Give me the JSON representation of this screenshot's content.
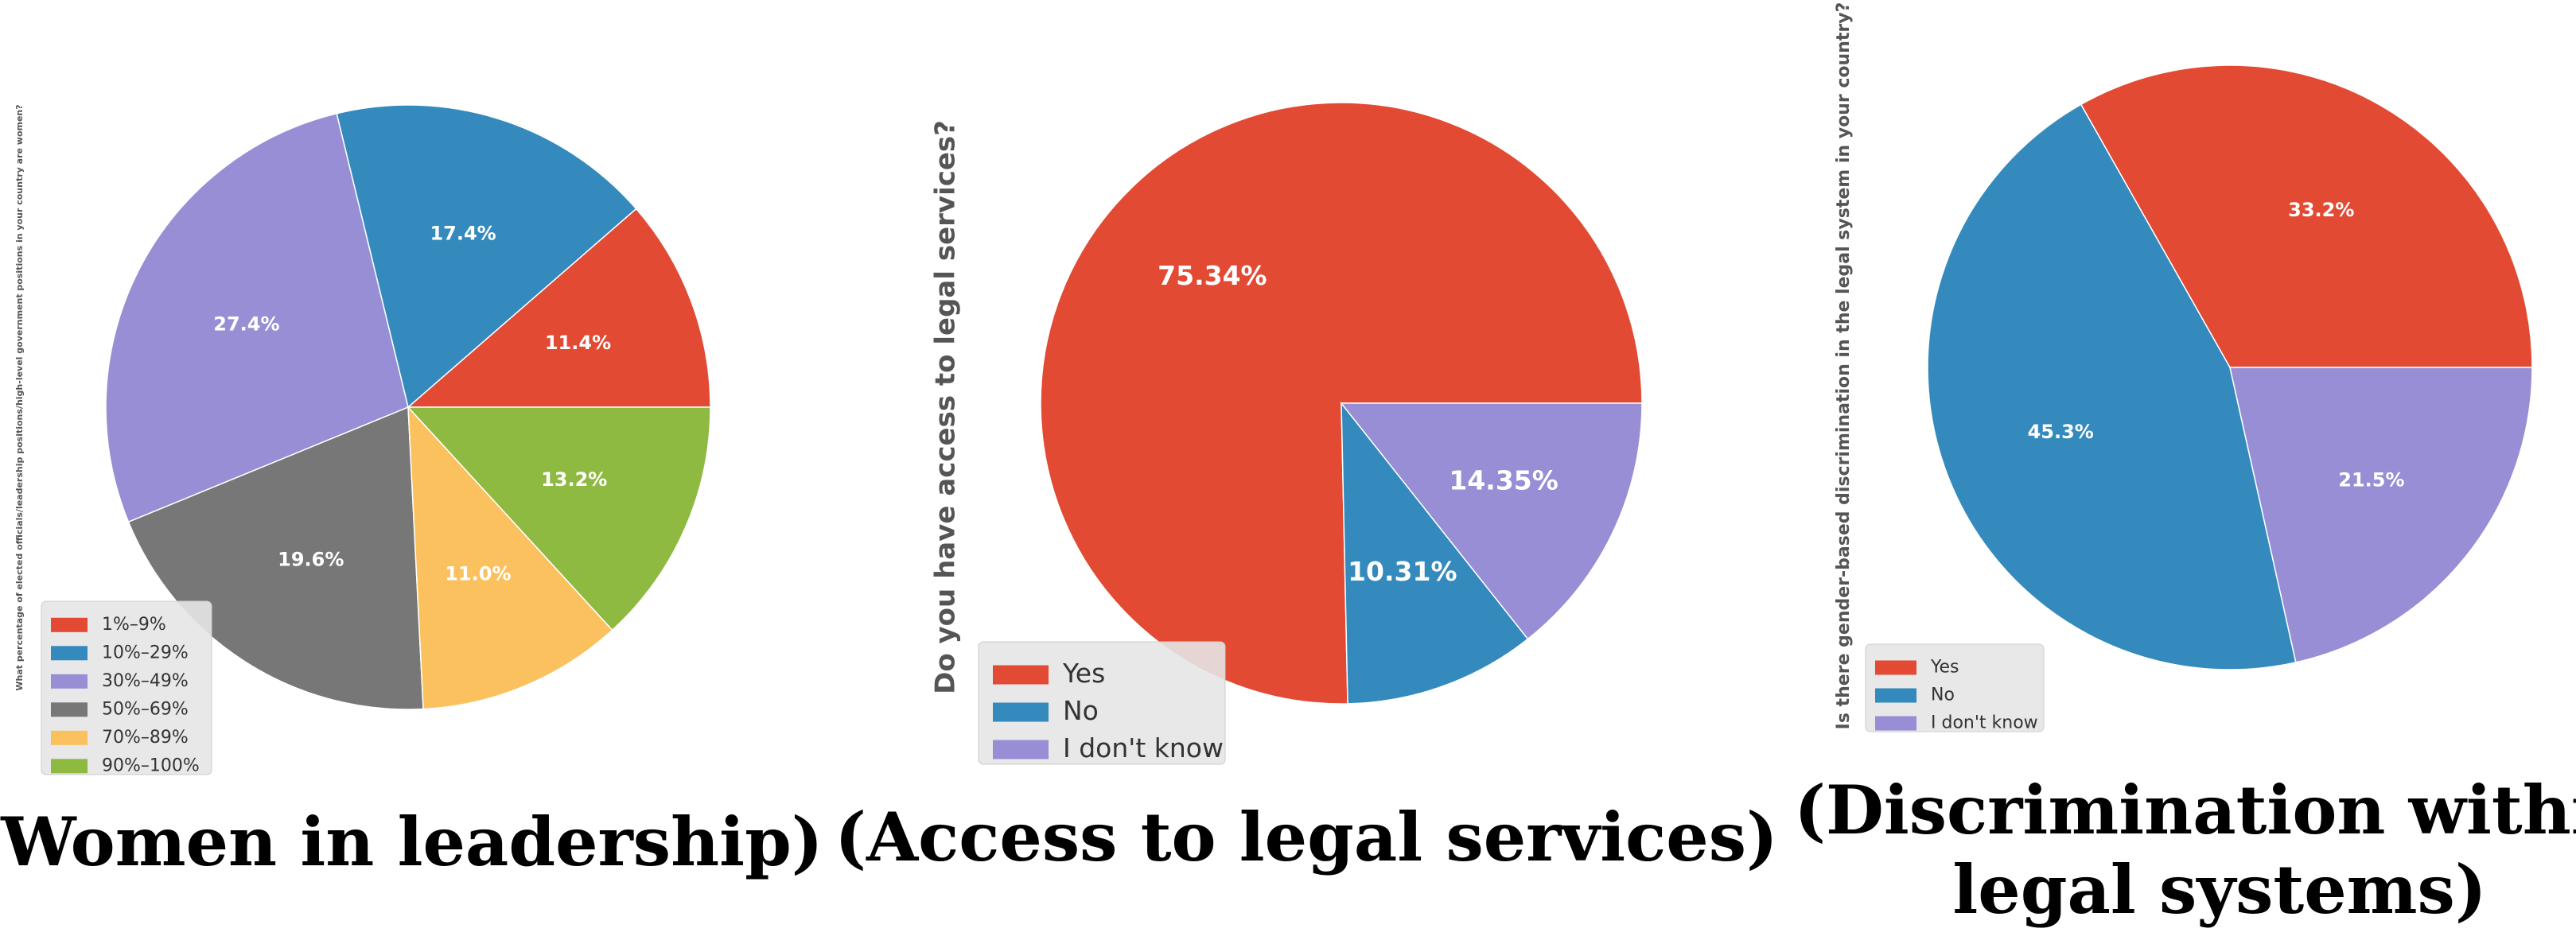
{
  "chart_data": [
    {
      "type": "pie",
      "title": "(Women in leadership)",
      "ylabel": "What percentage of elected officials/leadership positions/high-level government positions in your country are women?",
      "legend_position": "bottom-left",
      "categories": [
        "1%–9%",
        "10%–29%",
        "30%–49%",
        "50%–69%",
        "70%–89%",
        "90%–100%"
      ],
      "values": [
        11.4,
        17.4,
        27.4,
        19.6,
        11.0,
        13.2
      ],
      "labels": [
        "11.4%",
        "17.4%",
        "27.4%",
        "19.6%",
        "11.0%",
        "13.2%"
      ],
      "colors": [
        "#E24A33",
        "#348ABD",
        "#988ED5",
        "#777777",
        "#FBC15E",
        "#8EBA42"
      ]
    },
    {
      "type": "pie",
      "title": "(Access to legal services)",
      "ylabel": "Do you have access to legal services?",
      "legend_position": "bottom-left",
      "categories": [
        "Yes",
        "No",
        "I don't know"
      ],
      "values": [
        75.34,
        10.31,
        14.35
      ],
      "labels": [
        "75.34%",
        "10.31%",
        "14.35%"
      ],
      "colors": [
        "#E24A33",
        "#348ABD",
        "#988ED5"
      ]
    },
    {
      "type": "pie",
      "title_lines": [
        "(Discrimination within",
        "legal systems)"
      ],
      "ylabel": "Is there gender-based discrimination in the legal system in your country?",
      "legend_position": "bottom-left",
      "categories": [
        "Yes",
        "No",
        "I don't know"
      ],
      "values": [
        33.2,
        45.3,
        21.5
      ],
      "labels": [
        "33.2%",
        "45.3%",
        "21.5%"
      ],
      "colors": [
        "#E24A33",
        "#348ABD",
        "#988ED5"
      ]
    }
  ]
}
